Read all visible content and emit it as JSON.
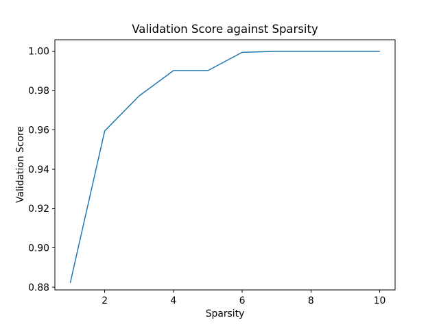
{
  "figure": {
    "background_color": "#ffffff",
    "text_color": "#000000"
  },
  "chart_data": {
    "type": "line",
    "title": "Validation Score against Sparsity",
    "xlabel": "Sparsity",
    "ylabel": "Validation Score",
    "series": [
      {
        "name": "validation-score",
        "x": [
          1,
          2,
          3,
          4,
          5,
          6,
          7,
          8,
          9,
          10
        ],
        "y": [
          0.8824,
          0.9595,
          0.9773,
          0.9902,
          0.9902,
          0.9995,
          1.0,
          1.0,
          1.0,
          1.0
        ]
      }
    ],
    "line_color": "#1f77b4",
    "line_width": 1.5,
    "marker": "none",
    "grid": false,
    "legend": null,
    "xlim": [
      0.55,
      10.45
    ],
    "ylim": [
      0.8786,
      1.0059
    ],
    "x_ticks": [
      2,
      4,
      6,
      8,
      10
    ],
    "x_tick_labels": [
      "2",
      "4",
      "6",
      "8",
      "10"
    ],
    "y_ticks": [
      0.88,
      0.9,
      0.92,
      0.94,
      0.96,
      0.98,
      1.0
    ],
    "y_tick_labels": [
      "0.88",
      "0.90",
      "0.92",
      "0.94",
      "0.96",
      "0.98",
      "1.00"
    ],
    "spine_color": "#000000",
    "tick_color": "#000000"
  }
}
